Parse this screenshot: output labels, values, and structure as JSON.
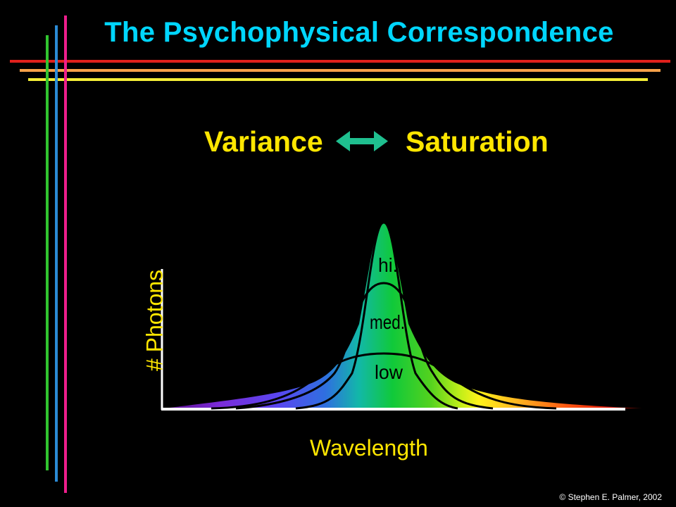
{
  "slide": {
    "title": "The Psychophysical Correspondence",
    "left_concept": "Variance",
    "right_concept": "Saturation",
    "credit": "© Stephen E. Palmer, 2002"
  },
  "diagram": {
    "y_axis_label": "# Photons",
    "x_axis_label": "Wavelength",
    "curves": [
      {
        "label": "hi.",
        "saturation": "high",
        "variance": "low"
      },
      {
        "label": "med.",
        "saturation": "medium",
        "variance": "medium"
      },
      {
        "label": "low",
        "saturation": "low",
        "variance": "high"
      }
    ]
  },
  "colors": {
    "title": "#00d6ff",
    "text": "#ffe600",
    "arrow": "#1fbf8f",
    "background": "#000000",
    "stripe_red": "#e0201c",
    "stripe_orange": "#f6a14a",
    "stripe_yellow": "#f5ee37",
    "stripe_green": "#31c52f",
    "stripe_blue": "#2b8bd6",
    "stripe_magenta": "#ee1e8c"
  }
}
